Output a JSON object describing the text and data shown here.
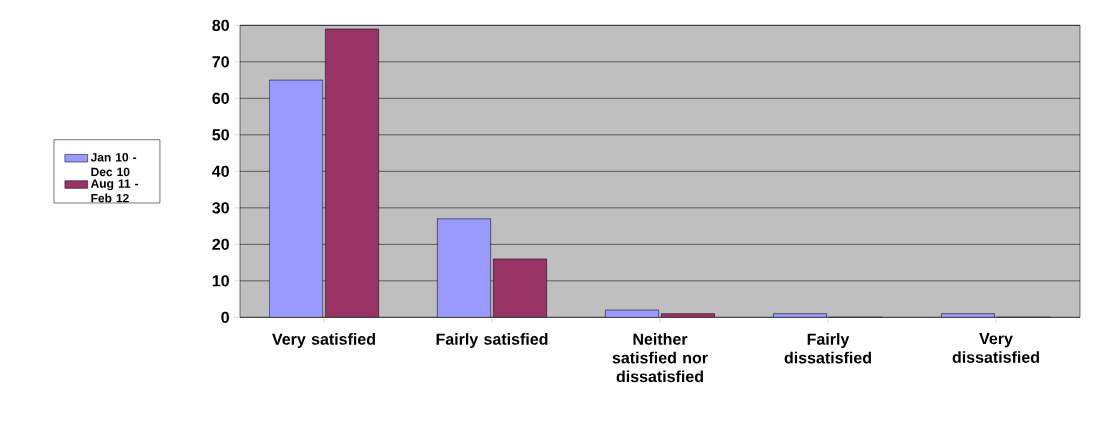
{
  "chart_data": {
    "type": "bar",
    "categories": [
      "Very satisfied",
      "Fairly satisfied",
      "Neither satisfied nor dissatisfied",
      "Fairly dissatisfied",
      "Very dissatisfied"
    ],
    "series": [
      {
        "name": "Jan 10 - Dec 10",
        "color": "#9999ff",
        "values": [
          65,
          27,
          2,
          1,
          1
        ]
      },
      {
        "name": "Aug 11 - Feb 12",
        "color": "#993366",
        "values": [
          79,
          16,
          1,
          0,
          0
        ]
      }
    ],
    "ylim": [
      0,
      80
    ],
    "yticks": [
      0,
      10,
      20,
      30,
      40,
      50,
      60,
      70,
      80
    ],
    "grid": "y",
    "legend": "left"
  }
}
